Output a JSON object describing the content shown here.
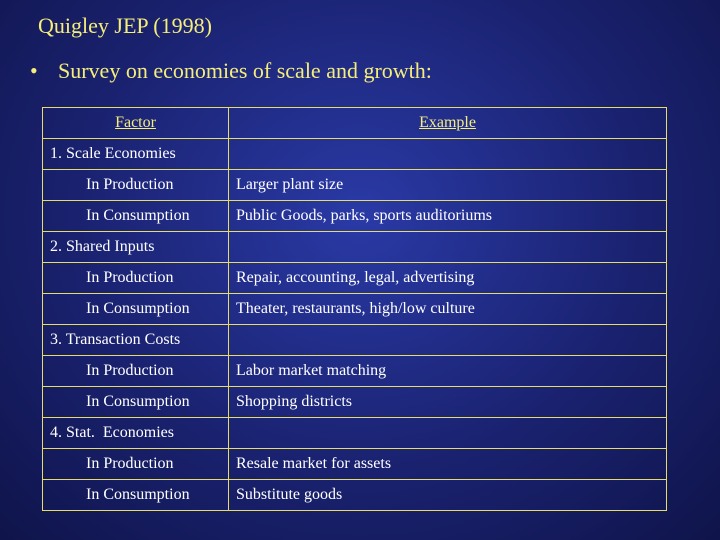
{
  "slide": {
    "title": "Quigley JEP (1998)",
    "bullet_symbol": "•",
    "bullet": "Survey on economies of scale and growth:"
  },
  "table": {
    "headers": [
      "Factor",
      "Example"
    ],
    "rows": [
      {
        "factor": "1. Scale Economies",
        "example": ""
      },
      {
        "factor": "In Production",
        "example": "Larger plant size"
      },
      {
        "factor": "In Consumption",
        "example": "Public Goods, parks, sports auditoriums"
      },
      {
        "factor": "2. Shared Inputs",
        "example": ""
      },
      {
        "factor": "In Production",
        "example": "Repair, accounting, legal, advertising"
      },
      {
        "factor": "In Consumption",
        "example": "Theater, restaurants, high/low culture"
      },
      {
        "factor": "3. Transaction Costs",
        "example": ""
      },
      {
        "factor": "In Production",
        "example": "Labor market matching"
      },
      {
        "factor": "In Consumption",
        "example": "Shopping districts"
      },
      {
        "factor": "4. Stat.  Economies",
        "example": ""
      },
      {
        "factor": "In Production",
        "example": "Resale market for assets"
      },
      {
        "factor": "In Consumption",
        "example": "Substitute goods"
      }
    ]
  },
  "colors": {
    "background": "#1a2270",
    "title_text": "#f5ee7a",
    "table_border": "#e6dc6a",
    "table_text": "#ffffff"
  }
}
